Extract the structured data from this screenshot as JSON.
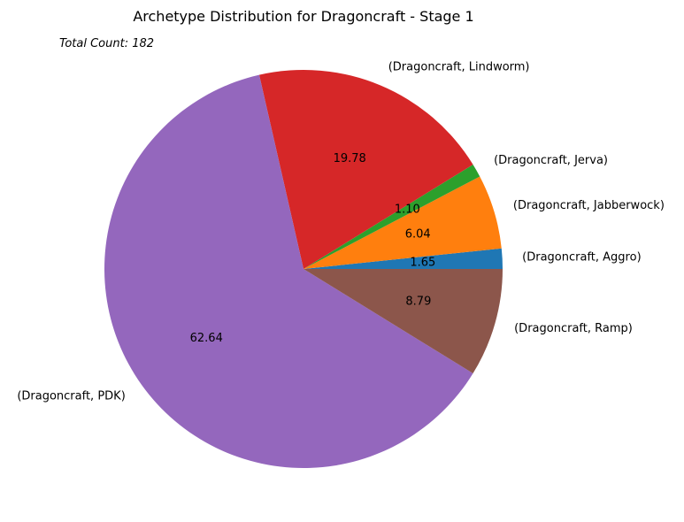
{
  "chart_data": {
    "type": "pie",
    "title": "Archetype Distribution for Dragoncraft - Stage 1",
    "annotation": "Total Count: 182",
    "slices": [
      {
        "label": "(Dragoncraft, Aggro)",
        "value": 1.65,
        "pct_text": "1.65",
        "color": "#1f77b4"
      },
      {
        "label": "(Dragoncraft, Jabberwock)",
        "value": 6.04,
        "pct_text": "6.04",
        "color": "#ff7f0e"
      },
      {
        "label": "(Dragoncraft, Jerva)",
        "value": 1.1,
        "pct_text": "1.10",
        "color": "#2ca02c"
      },
      {
        "label": "(Dragoncraft, Lindworm)",
        "value": 19.78,
        "pct_text": "19.78",
        "color": "#d62728"
      },
      {
        "label": "(Dragoncraft, PDK)",
        "value": 62.64,
        "pct_text": "62.64",
        "color": "#9467bd"
      },
      {
        "label": "(Dragoncraft, Ramp)",
        "value": 8.79,
        "pct_text": "8.79",
        "color": "#8c564b"
      }
    ],
    "start_angle_deg": 0,
    "direction": "counterclockwise",
    "legend": "none"
  }
}
